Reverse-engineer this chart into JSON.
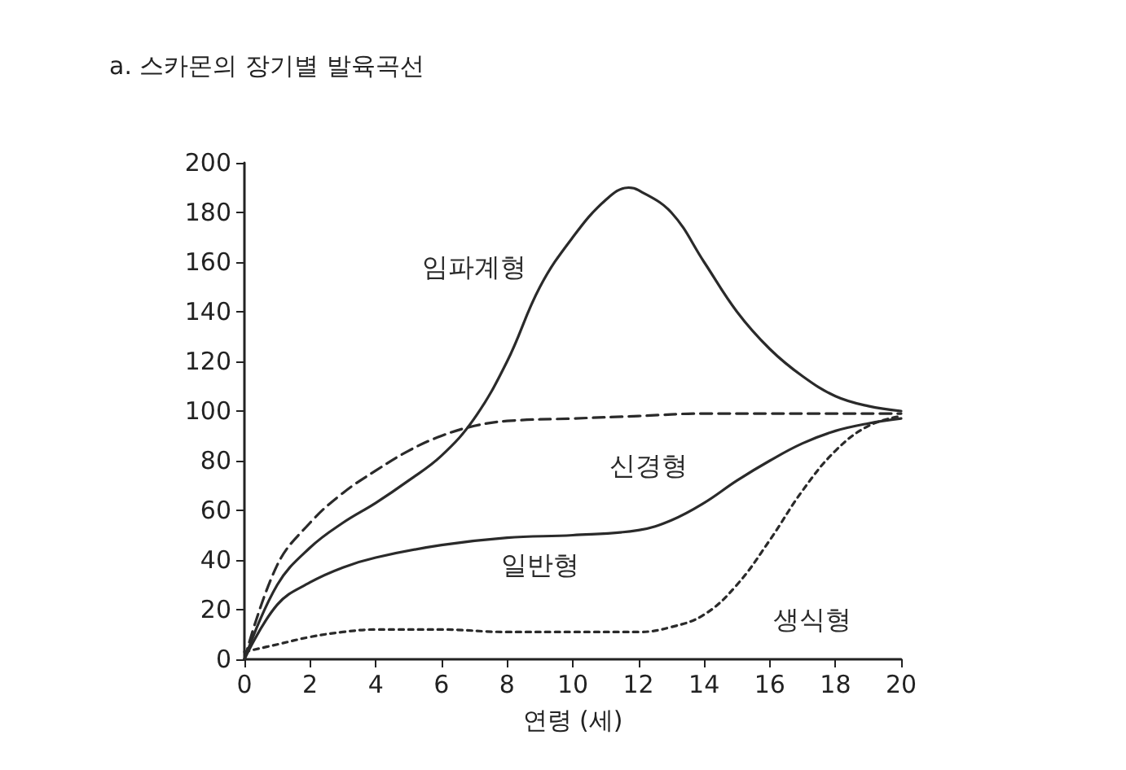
{
  "chart_data": {
    "type": "line",
    "title": "a. 스카몬의 장기별 발육곡선",
    "xlabel": "연령 (세)",
    "xlim": [
      0,
      20
    ],
    "xticks": [
      0,
      2,
      4,
      6,
      8,
      10,
      12,
      14,
      16,
      18,
      20
    ],
    "ylim": [
      0,
      200
    ],
    "yticks": [
      0,
      20,
      40,
      60,
      80,
      100,
      120,
      140,
      160,
      180,
      200
    ],
    "grid": false,
    "legend": false,
    "marker": "none",
    "series": [
      {
        "name": "임파계형",
        "color": "#2a2a2a",
        "line_style": "solid",
        "x": [
          0,
          1,
          2,
          3,
          4,
          5,
          6,
          7,
          8,
          9,
          10,
          11,
          11.7,
          12,
          13,
          14,
          15,
          16,
          17,
          18,
          19,
          20
        ],
        "values": [
          0,
          30,
          45,
          55,
          63,
          72,
          82,
          97,
          120,
          150,
          170,
          185,
          190,
          189,
          180,
          160,
          140,
          125,
          114,
          106,
          102,
          100
        ]
      },
      {
        "name": "신경형",
        "color": "#2a2a2a",
        "line_style": "dashed",
        "x": [
          0,
          1,
          2,
          3,
          4,
          5,
          6,
          7,
          8,
          10,
          12,
          14,
          16,
          18,
          20
        ],
        "values": [
          0,
          38,
          55,
          67,
          76,
          84,
          90,
          94,
          96,
          97,
          98,
          99,
          99,
          99,
          99
        ]
      },
      {
        "name": "일반형",
        "color": "#2a2a2a",
        "line_style": "solid",
        "x": [
          0,
          1,
          2,
          3,
          4,
          6,
          8,
          10,
          12,
          13,
          14,
          15,
          16,
          17,
          18,
          19,
          20
        ],
        "values": [
          0,
          22,
          31,
          37,
          41,
          46,
          49,
          50,
          52,
          56,
          63,
          72,
          80,
          87,
          92,
          95,
          97
        ]
      },
      {
        "name": "생식형",
        "color": "#2a2a2a",
        "line_style": "dotted",
        "x": [
          0,
          1,
          2,
          3,
          4,
          6,
          8,
          10,
          12,
          13,
          14,
          15,
          16,
          17,
          18,
          19,
          20
        ],
        "values": [
          3,
          6,
          9,
          11,
          12,
          12,
          11,
          11,
          11,
          13,
          18,
          30,
          48,
          68,
          84,
          94,
          98
        ]
      }
    ]
  }
}
